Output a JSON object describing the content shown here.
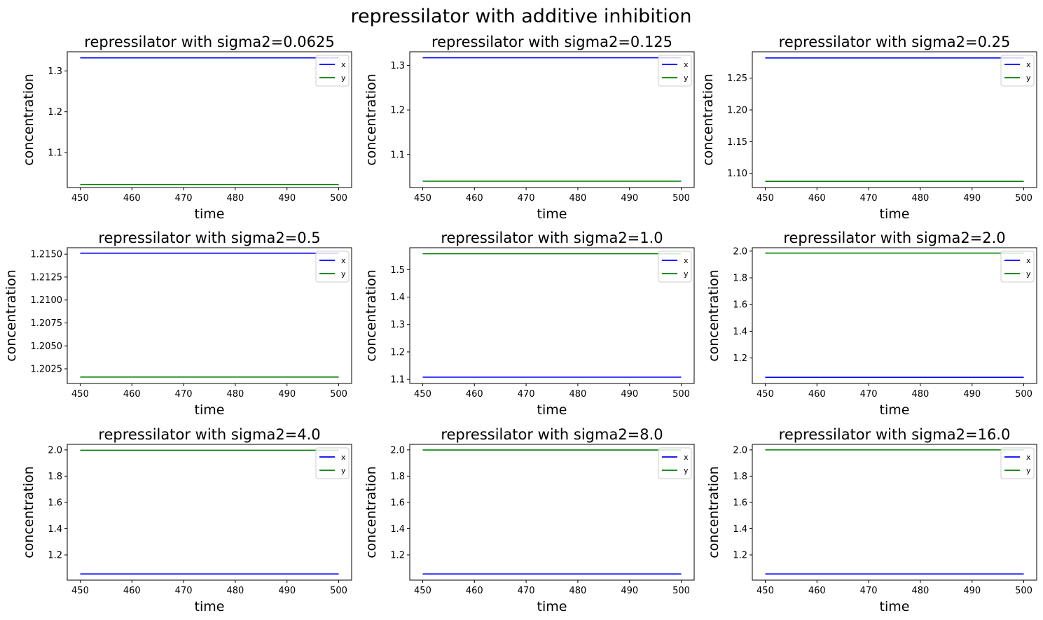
{
  "suptitle": "repressilator with additive inhibition",
  "chart_data": [
    {
      "type": "line",
      "title": "repressilator with sigma2=0.0625",
      "xlabel": "time",
      "ylabel": "concentration",
      "xlim": [
        447.5,
        502.5
      ],
      "ylim": [
        1.0145,
        1.3468
      ],
      "xticks": [
        450,
        460,
        470,
        480,
        490,
        500
      ],
      "xtick_labels": [
        "450",
        "460",
        "470",
        "480",
        "490",
        "500"
      ],
      "yticks": [
        1.1,
        1.2,
        1.3
      ],
      "ytick_labels": [
        "1.1",
        "1.2",
        "1.3"
      ],
      "legend": "upper right",
      "series": [
        {
          "name": "x",
          "color": "#0000ff",
          "x": [
            450,
            500
          ],
          "y": [
            1.332,
            1.332
          ]
        },
        {
          "name": "y",
          "color": "#008000",
          "x": [
            450,
            500
          ],
          "y": [
            1.022,
            1.022
          ]
        }
      ]
    },
    {
      "type": "line",
      "title": "repressilator with sigma2=0.125",
      "xlabel": "time",
      "ylabel": "concentration",
      "xlim": [
        447.5,
        502.5
      ],
      "ylim": [
        1.0258,
        1.3305
      ],
      "xticks": [
        450,
        460,
        470,
        480,
        490,
        500
      ],
      "xtick_labels": [
        "450",
        "460",
        "470",
        "480",
        "490",
        "500"
      ],
      "yticks": [
        1.1,
        1.2,
        1.3
      ],
      "ytick_labels": [
        "1.1",
        "1.2",
        "1.3"
      ],
      "legend": "upper right",
      "series": [
        {
          "name": "x",
          "color": "#0000ff",
          "x": [
            450,
            500
          ],
          "y": [
            1.317,
            1.317
          ]
        },
        {
          "name": "y",
          "color": "#008000",
          "x": [
            450,
            500
          ],
          "y": [
            1.04,
            1.04
          ]
        }
      ]
    },
    {
      "type": "line",
      "title": "repressilator with sigma2=0.25",
      "xlabel": "time",
      "ylabel": "concentration",
      "xlim": [
        447.5,
        502.5
      ],
      "ylim": [
        1.0776,
        1.2916
      ],
      "xticks": [
        450,
        460,
        470,
        480,
        490,
        500
      ],
      "xtick_labels": [
        "450",
        "460",
        "470",
        "480",
        "490",
        "500"
      ],
      "yticks": [
        1.1,
        1.15,
        1.2,
        1.25
      ],
      "ytick_labels": [
        "1.10",
        "1.15",
        "1.20",
        "1.25"
      ],
      "legend": "upper right",
      "series": [
        {
          "name": "x",
          "color": "#0000ff",
          "x": [
            450,
            500
          ],
          "y": [
            1.2819,
            1.2819
          ]
        },
        {
          "name": "y",
          "color": "#008000",
          "x": [
            450,
            500
          ],
          "y": [
            1.0873,
            1.0873
          ]
        }
      ]
    },
    {
      "type": "line",
      "title": "repressilator with sigma2=0.5",
      "xlabel": "time",
      "ylabel": "concentration",
      "xlim": [
        447.5,
        502.5
      ],
      "ylim": [
        1.2009,
        1.2157
      ],
      "xticks": [
        450,
        460,
        470,
        480,
        490,
        500
      ],
      "xtick_labels": [
        "450",
        "460",
        "470",
        "480",
        "490",
        "500"
      ],
      "yticks": [
        1.2025,
        1.205,
        1.2075,
        1.21,
        1.2125,
        1.215
      ],
      "ytick_labels": [
        "1.2025",
        "1.2050",
        "1.2075",
        "1.2100",
        "1.2125",
        "1.2150"
      ],
      "legend": "upper right",
      "series": [
        {
          "name": "x",
          "color": "#0000ff",
          "x": [
            450,
            500
          ],
          "y": [
            1.2151,
            1.2151
          ]
        },
        {
          "name": "y",
          "color": "#008000",
          "x": [
            450,
            500
          ],
          "y": [
            1.2016,
            1.2016
          ]
        }
      ]
    },
    {
      "type": "line",
      "title": "repressilator with sigma2=1.0",
      "xlabel": "time",
      "ylabel": "concentration",
      "xlim": [
        447.5,
        502.5
      ],
      "ylim": [
        1.085,
        1.58
      ],
      "xticks": [
        450,
        460,
        470,
        480,
        490,
        500
      ],
      "xtick_labels": [
        "450",
        "460",
        "470",
        "480",
        "490",
        "500"
      ],
      "yticks": [
        1.1,
        1.2,
        1.3,
        1.4,
        1.5
      ],
      "ytick_labels": [
        "1.1",
        "1.2",
        "1.3",
        "1.4",
        "1.5"
      ],
      "legend": "upper right",
      "series": [
        {
          "name": "x",
          "color": "#0000ff",
          "x": [
            450,
            500
          ],
          "y": [
            1.108,
            1.108
          ]
        },
        {
          "name": "y",
          "color": "#008000",
          "x": [
            450,
            500
          ],
          "y": [
            1.558,
            1.558
          ]
        }
      ]
    },
    {
      "type": "line",
      "title": "repressilator with sigma2=2.0",
      "xlabel": "time",
      "ylabel": "concentration",
      "xlim": [
        447.5,
        502.5
      ],
      "ylim": [
        1.009,
        2.0253
      ],
      "xticks": [
        450,
        460,
        470,
        480,
        490,
        500
      ],
      "xtick_labels": [
        "450",
        "460",
        "470",
        "480",
        "490",
        "500"
      ],
      "yticks": [
        1.2,
        1.4,
        1.6,
        1.8,
        2.0
      ],
      "ytick_labels": [
        "1.2",
        "1.4",
        "1.6",
        "1.8",
        "2.0"
      ],
      "legend": "upper right",
      "series": [
        {
          "name": "x",
          "color": "#0000ff",
          "x": [
            450,
            500
          ],
          "y": [
            1.055,
            1.055
          ]
        },
        {
          "name": "y",
          "color": "#008000",
          "x": [
            450,
            500
          ],
          "y": [
            1.985,
            1.985
          ]
        }
      ]
    },
    {
      "type": "line",
      "title": "repressilator with sigma2=4.0",
      "xlabel": "time",
      "ylabel": "concentration",
      "xlim": [
        447.5,
        502.5
      ],
      "ylim": [
        1.008,
        2.042
      ],
      "xticks": [
        450,
        460,
        470,
        480,
        490,
        500
      ],
      "xtick_labels": [
        "450",
        "460",
        "470",
        "480",
        "490",
        "500"
      ],
      "yticks": [
        1.2,
        1.4,
        1.6,
        1.8,
        2.0
      ],
      "ytick_labels": [
        "1.2",
        "1.4",
        "1.6",
        "1.8",
        "2.0"
      ],
      "legend": "upper right",
      "series": [
        {
          "name": "x",
          "color": "#0000ff",
          "x": [
            450,
            500
          ],
          "y": [
            1.055,
            1.055
          ]
        },
        {
          "name": "y",
          "color": "#008000",
          "x": [
            450,
            500
          ],
          "y": [
            1.997,
            1.997
          ]
        }
      ]
    },
    {
      "type": "line",
      "title": "repressilator with sigma2=8.0",
      "xlabel": "time",
      "ylabel": "concentration",
      "xlim": [
        447.5,
        502.5
      ],
      "ylim": [
        1.008,
        2.042
      ],
      "xticks": [
        450,
        460,
        470,
        480,
        490,
        500
      ],
      "xtick_labels": [
        "450",
        "460",
        "470",
        "480",
        "490",
        "500"
      ],
      "yticks": [
        1.2,
        1.4,
        1.6,
        1.8,
        2.0
      ],
      "ytick_labels": [
        "1.2",
        "1.4",
        "1.6",
        "1.8",
        "2.0"
      ],
      "legend": "upper right",
      "series": [
        {
          "name": "x",
          "color": "#0000ff",
          "x": [
            450,
            500
          ],
          "y": [
            1.055,
            1.055
          ]
        },
        {
          "name": "y",
          "color": "#008000",
          "x": [
            450,
            500
          ],
          "y": [
            1.999,
            1.999
          ]
        }
      ]
    },
    {
      "type": "line",
      "title": "repressilator with sigma2=16.0",
      "xlabel": "time",
      "ylabel": "concentration",
      "xlim": [
        447.5,
        502.5
      ],
      "ylim": [
        1.008,
        2.042
      ],
      "xticks": [
        450,
        460,
        470,
        480,
        490,
        500
      ],
      "xtick_labels": [
        "450",
        "460",
        "470",
        "480",
        "490",
        "500"
      ],
      "yticks": [
        1.2,
        1.4,
        1.6,
        1.8,
        2.0
      ],
      "ytick_labels": [
        "1.2",
        "1.4",
        "1.6",
        "1.8",
        "2.0"
      ],
      "legend": "upper right",
      "series": [
        {
          "name": "x",
          "color": "#0000ff",
          "x": [
            450,
            500
          ],
          "y": [
            1.055,
            1.055
          ]
        },
        {
          "name": "y",
          "color": "#008000",
          "x": [
            450,
            500
          ],
          "y": [
            2.0,
            2.0
          ]
        }
      ]
    }
  ]
}
